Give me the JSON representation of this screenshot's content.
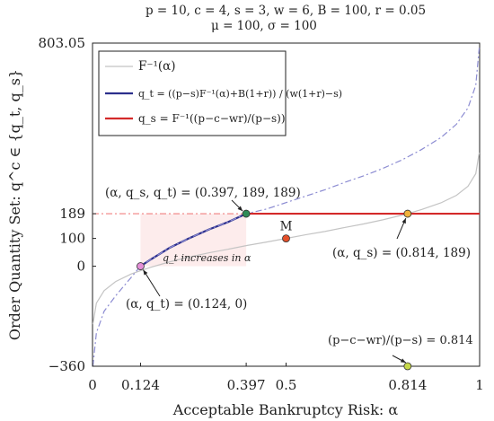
{
  "chart_data": {
    "type": "line",
    "header_line1": "p = 10, c = 4, s = 3, w = 6, B = 100, r = 0.05",
    "header_line2": "μ = 100, σ = 100",
    "xlabel": "Acceptable Bankruptcy Risk: α",
    "ylabel": "Order Quantity Set: q^c ∈ {q_t, q_s}",
    "xlim": [
      0,
      1
    ],
    "ylim": [
      -360,
      803.05
    ],
    "x_ticks": [
      {
        "value": 0,
        "label": "0"
      },
      {
        "value": 0.124,
        "label": "0.124"
      },
      {
        "value": 0.397,
        "label": "0.397"
      },
      {
        "value": 0.5,
        "label": "0.5"
      },
      {
        "value": 0.814,
        "label": "0.814"
      },
      {
        "value": 1,
        "label": "1"
      }
    ],
    "y_ticks": [
      {
        "value": -360,
        "label": "−360"
      },
      {
        "value": 0,
        "label": "0"
      },
      {
        "value": 100,
        "label": "100"
      },
      {
        "value": 189,
        "label": "189"
      },
      {
        "value": 803.05,
        "label": "803.05"
      }
    ],
    "legend_position": "top-left",
    "series": [
      {
        "name": "F⁻¹(α)",
        "color": "#c4c4c4",
        "style": "solid",
        "x": [
          0.001,
          0.01,
          0.03,
          0.06,
          0.1,
          0.124,
          0.15,
          0.2,
          0.25,
          0.3,
          0.35,
          0.4,
          0.45,
          0.5,
          0.55,
          0.6,
          0.65,
          0.7,
          0.75,
          0.8,
          0.814,
          0.85,
          0.9,
          0.94,
          0.97,
          0.99,
          0.999
        ],
        "y": [
          -209,
          -133,
          -88,
          -55,
          -28,
          -16,
          -4,
          16,
          33,
          48,
          61,
          75,
          87,
          100,
          113,
          125,
          139,
          152,
          167,
          184,
          189,
          204,
          228,
          255,
          288,
          333,
          409
        ]
      },
      {
        "name": "q_t = ((p−s)F⁻¹(α)+B(1+r)) / (w(1+r)−s)",
        "color": "#2c2f8c",
        "style": "solid",
        "x": [
          0.124,
          0.15,
          0.2,
          0.25,
          0.3,
          0.35,
          0.397
        ],
        "y": [
          0,
          24,
          67,
          101,
          132,
          159,
          189
        ]
      },
      {
        "name": "",
        "color": "#8c8cd2",
        "style": "dashdot",
        "x": [
          0.001,
          0.01,
          0.03,
          0.06,
          0.1,
          0.124,
          0.15,
          0.2,
          0.25,
          0.3,
          0.35,
          0.397,
          0.45,
          0.5,
          0.55,
          0.6,
          0.65,
          0.7,
          0.75,
          0.8,
          0.85,
          0.9,
          0.94,
          0.97,
          0.99,
          0.999
        ],
        "y": [
          -360,
          -240,
          -162,
          -106,
          -40,
          0,
          24,
          67,
          101,
          132,
          159,
          189,
          206,
          229,
          252,
          275,
          301,
          325,
          352,
          383,
          420,
          463,
          511,
          570,
          651,
          786
        ]
      },
      {
        "name": "q_s = F⁻¹((p−c−wr)/(p−s))",
        "color": "#d42a2a",
        "style": "solid",
        "x": [
          0.397,
          1
        ],
        "y": [
          189,
          189
        ]
      },
      {
        "name": "",
        "color": "#f08080",
        "style": "dashdot",
        "x": [
          0,
          0.397
        ],
        "y": [
          189,
          189
        ]
      }
    ],
    "points": [
      {
        "name": "alpha-qs-qt",
        "x": 0.397,
        "y": 189,
        "color": "#2e8b57",
        "label": "(α, q_s, q_t) = (0.397, 189, 189)"
      },
      {
        "name": "alpha-qt",
        "x": 0.124,
        "y": 0,
        "color": "#e58fd8",
        "label": "(α, q_t) = (0.124, 0)"
      },
      {
        "name": "alpha-qs",
        "x": 0.814,
        "y": 189,
        "color": "#f0b23c",
        "label": "(α, q_s) = (0.814, 189)"
      },
      {
        "name": "m-point",
        "x": 0.5,
        "y": 100,
        "color": "#e4502a",
        "label": "M"
      },
      {
        "name": "ratio-point",
        "x": 0.814,
        "y": -360,
        "color": "#c6d84a",
        "label": "(p−c−wr)/(p−s) = 0.814"
      }
    ],
    "annotations": [
      {
        "text": "q_t increases in α"
      }
    ]
  }
}
